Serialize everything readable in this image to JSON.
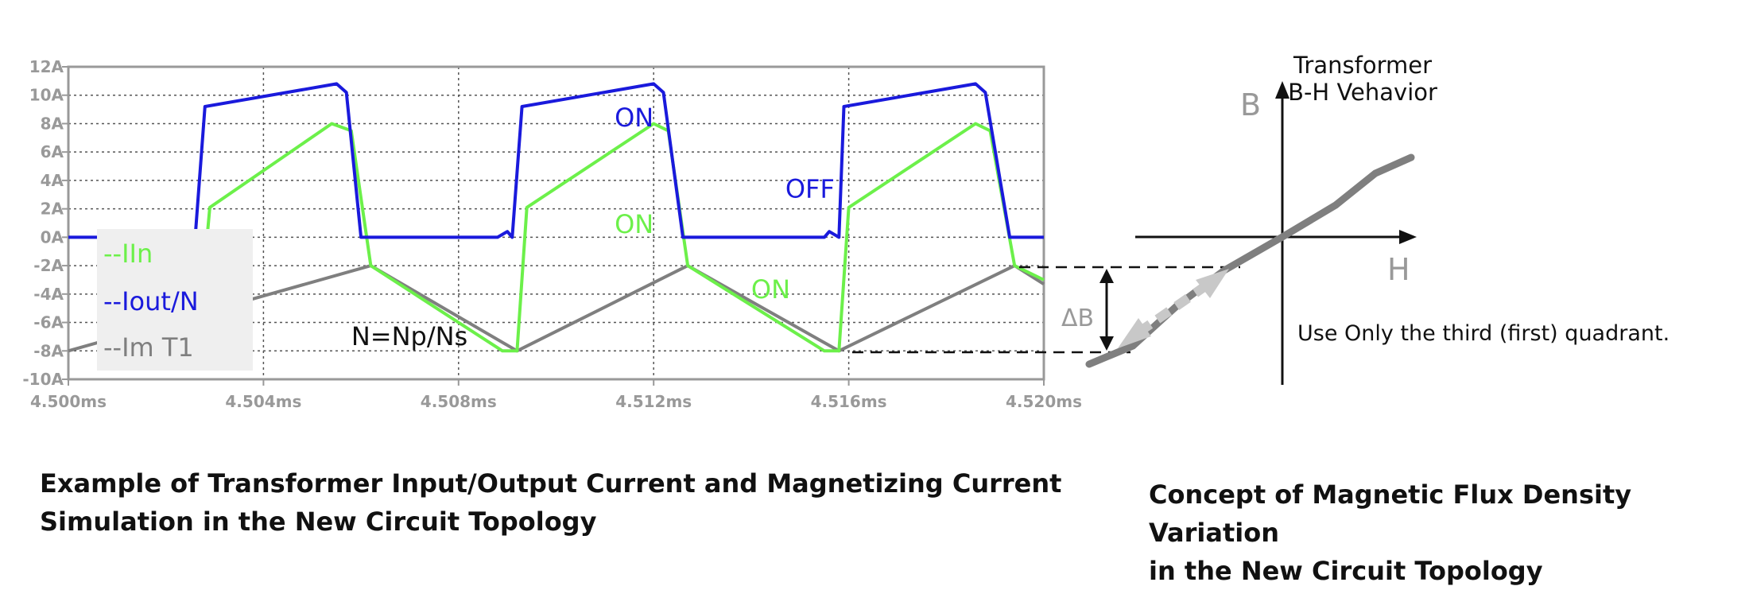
{
  "chart_data": [
    {
      "type": "line",
      "title": "",
      "xlabel": "",
      "ylabel": "",
      "xlim": [
        4.5,
        4.52
      ],
      "ylim": [
        -10,
        12
      ],
      "x_ticks": [
        "4.500ms",
        "4.504ms",
        "4.508ms",
        "4.512ms",
        "4.516ms",
        "4.520ms"
      ],
      "x_tick_values": [
        4.5,
        4.504,
        4.508,
        4.512,
        4.516,
        4.52
      ],
      "y_ticks": [
        "12A",
        "10A",
        "8A",
        "6A",
        "4A",
        "2A",
        "0A",
        "-2A",
        "-4A",
        "-6A",
        "-8A",
        "-10A"
      ],
      "y_tick_values": [
        12,
        10,
        8,
        6,
        4,
        2,
        0,
        -2,
        -4,
        -6,
        -8,
        -10
      ],
      "grid": true,
      "legend_position": "bottom-left",
      "series": [
        {
          "name": "--Iout/N",
          "color": "#1a1adc",
          "points": [
            [
              4.5,
              0
            ],
            [
              4.5026,
              0
            ],
            [
              4.5028,
              9.2
            ],
            [
              4.5055,
              10.8
            ],
            [
              4.5057,
              10.2
            ],
            [
              4.506,
              0
            ],
            [
              4.5088,
              0
            ],
            [
              4.509,
              0.4
            ],
            [
              4.5091,
              0
            ],
            [
              4.5093,
              9.2
            ],
            [
              4.512,
              10.8
            ],
            [
              4.5122,
              10.2
            ],
            [
              4.5126,
              0
            ],
            [
              4.5155,
              0
            ],
            [
              4.5156,
              0.4
            ],
            [
              4.5158,
              0
            ],
            [
              4.5159,
              9.2
            ],
            [
              4.5186,
              10.8
            ],
            [
              4.5188,
              10.2
            ],
            [
              4.5193,
              0
            ],
            [
              4.52,
              0
            ]
          ]
        },
        {
          "name": "--IIn",
          "color": "#6cf04a",
          "points": [
            [
              4.5027,
              -5.5
            ],
            [
              4.5029,
              2.1
            ],
            [
              4.5054,
              8.0
            ],
            [
              4.5058,
              7.5
            ],
            [
              4.5062,
              -2.0
            ],
            [
              4.5089,
              -8.0
            ],
            [
              4.5092,
              -8.0
            ],
            [
              4.5094,
              2.1
            ],
            [
              4.512,
              8.0
            ],
            [
              4.5123,
              7.5
            ],
            [
              4.5127,
              -2.0
            ],
            [
              4.5155,
              -8.0
            ],
            [
              4.5158,
              -8.0
            ],
            [
              4.516,
              2.1
            ],
            [
              4.5186,
              8.0
            ],
            [
              4.5189,
              7.5
            ],
            [
              4.5194,
              -2.0
            ],
            [
              4.52,
              -3.0
            ]
          ]
        },
        {
          "name": "--Im T1",
          "color": "#7f7f7f",
          "points": [
            [
              4.5,
              -8.0
            ],
            [
              4.5062,
              -2.0
            ],
            [
              4.5092,
              -8.0
            ],
            [
              4.5127,
              -2.0
            ],
            [
              4.5158,
              -8.0
            ],
            [
              4.5194,
              -2.0
            ],
            [
              4.52,
              -3.3
            ]
          ]
        }
      ],
      "annotations": [
        {
          "text": "ON",
          "x": 4.5112,
          "y": 7.8,
          "color": "#1a1adc"
        },
        {
          "text": "OFF",
          "x": 4.5147,
          "y": 2.8,
          "color": "#1a1adc"
        },
        {
          "text": "ON",
          "x": 4.5112,
          "y": 0.3,
          "color": "#6cf04a"
        },
        {
          "text": "ON",
          "x": 4.514,
          "y": -4.3,
          "color": "#6cf04a"
        },
        {
          "text": "N=Np/Ns",
          "x": 4.5058,
          "y": -7.6,
          "color": "#111111"
        }
      ]
    },
    {
      "type": "diagram",
      "title": "Transformer B-H Vehavior",
      "title_lines": [
        "Transformer",
        "B-H Vehavior"
      ],
      "y_axis_label": "B",
      "x_axis_label": "H",
      "delta_label": "ΔB",
      "note": "Use Only the third (first) quadrant."
    }
  ],
  "captions": {
    "left_line1": "Example of Transformer Input/Output Current and Magnetizing Current",
    "left_line2": "Simulation in the New Circuit Topology",
    "right_line1": "Concept of Magnetic Flux Density Variation",
    "right_line2": "in the New Circuit Topology"
  },
  "colors": {
    "blue": "#1a1adc",
    "green": "#6cf04a",
    "gray": "#7f7f7f",
    "tick": "#999999"
  }
}
